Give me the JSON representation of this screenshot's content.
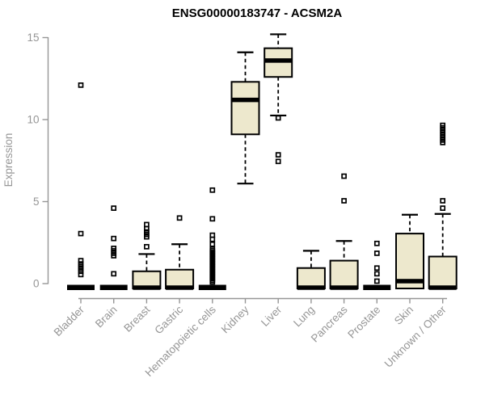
{
  "chart_data": {
    "type": "box",
    "title": "ENSG00000183747 - ACSM2A",
    "xlabel": "",
    "ylabel": "Expression",
    "ylim": [
      0,
      15.4
    ],
    "yticks": [
      0,
      5,
      10,
      15
    ],
    "grid": false,
    "legend": "none",
    "categories": [
      "Bladder",
      "Brain",
      "Breast",
      "Gastric",
      "Hematopoietic cells",
      "Kidney",
      "Liver",
      "Lung",
      "Pancreas",
      "Prostate",
      "Skin",
      "Unknown / Other"
    ],
    "boxes": [
      {
        "name": "Bladder",
        "q1": 0,
        "median": 0,
        "q3": 0,
        "whisker_low": 0,
        "whisker_high": 0,
        "outliers": [
          12.1,
          3.05,
          1.4,
          1.2,
          1.05,
          0.9,
          0.75,
          0.55
        ]
      },
      {
        "name": "Brain",
        "q1": 0,
        "median": 0,
        "q3": 0,
        "whisker_low": 0,
        "whisker_high": 0,
        "outliers": [
          4.6,
          2.75,
          2.15,
          2.0,
          1.85,
          1.7,
          0.6
        ]
      },
      {
        "name": "Breast",
        "q1": 0,
        "median": 0,
        "q3": 0.75,
        "whisker_low": 0,
        "whisker_high": 1.8,
        "outliers": [
          3.6,
          3.35,
          3.15,
          3.0,
          2.85,
          2.25
        ]
      },
      {
        "name": "Gastric",
        "q1": 0,
        "median": 0,
        "q3": 0.85,
        "whisker_low": 0,
        "whisker_high": 2.4,
        "outliers": [
          4.0
        ]
      },
      {
        "name": "Hematopoietic cells",
        "q1": 0,
        "median": 0,
        "q3": 0,
        "whisker_low": 0,
        "whisker_high": 0,
        "outliers": [
          5.7,
          3.95,
          2.95,
          2.7,
          2.4,
          2.1,
          2.0,
          1.9,
          1.8,
          1.7,
          1.6,
          1.5,
          1.4,
          1.3,
          1.2,
          1.1,
          1.0,
          0.9,
          0.8,
          0.7,
          0.6,
          0.5,
          0.4,
          0.3,
          0.2,
          0.1
        ]
      },
      {
        "name": "Kidney",
        "q1": 9.1,
        "median": 11.2,
        "q3": 12.3,
        "whisker_low": 6.1,
        "whisker_high": 14.1,
        "outliers": []
      },
      {
        "name": "Liver",
        "q1": 12.6,
        "median": 13.6,
        "q3": 14.35,
        "whisker_low": 10.25,
        "whisker_high": 15.2,
        "outliers": [
          10.1,
          7.85,
          7.45
        ]
      },
      {
        "name": "Lung",
        "q1": 0,
        "median": 0,
        "q3": 0.95,
        "whisker_low": 0,
        "whisker_high": 2.0,
        "outliers": []
      },
      {
        "name": "Pancreas",
        "q1": 0,
        "median": 0,
        "q3": 1.4,
        "whisker_low": 0,
        "whisker_high": 2.6,
        "outliers": [
          6.55,
          5.05
        ]
      },
      {
        "name": "Prostate",
        "q1": 0,
        "median": 0,
        "q3": 0,
        "whisker_low": 0,
        "whisker_high": 0,
        "outliers": [
          2.45,
          1.85,
          0.95,
          0.6,
          0.15
        ]
      },
      {
        "name": "Skin",
        "q1": 0,
        "median": 0.15,
        "q3": 3.05,
        "whisker_low": 0,
        "whisker_high": 4.2,
        "outliers": []
      },
      {
        "name": "Unknown / Other",
        "q1": 0,
        "median": 0,
        "q3": 1.65,
        "whisker_low": 0,
        "whisker_high": 4.25,
        "outliers": [
          9.65,
          9.5,
          9.35,
          9.2,
          9.05,
          8.9,
          8.75,
          8.6,
          5.05,
          4.6
        ]
      }
    ],
    "colors": {
      "box_fill": "#EDE8CD",
      "box_stroke": "#000000",
      "median": "#000000",
      "outlier": "#000000",
      "axis": "#969696",
      "tick_text": "#969696",
      "title": "#000000",
      "background": "#FFFFFF"
    }
  }
}
